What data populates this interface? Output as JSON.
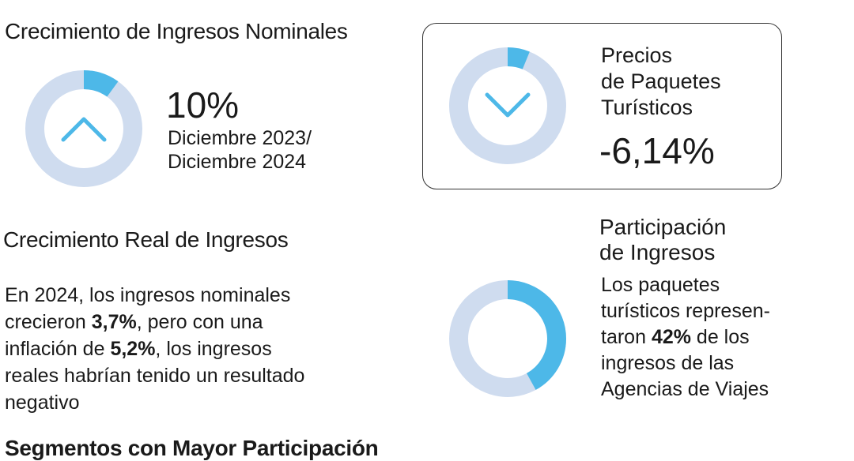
{
  "nominal": {
    "title": "Crecimiento de Ingresos Nominales",
    "value": "10%",
    "period_line1": "Diciembre 2023/",
    "period_line2": "Diciembre 2024",
    "ring_fraction": 0.1,
    "arrow_icon": "chevron-up-icon"
  },
  "packages": {
    "title_line1": "Precios",
    "title_line2": "de Paquetes",
    "title_line3": "Turísticos",
    "value": "-6,14%",
    "ring_fraction": 0.0614,
    "arrow_icon": "chevron-down-icon"
  },
  "real": {
    "title": "Crecimiento Real de Ingresos",
    "text_a": "En 2024, los ingresos nominales",
    "text_b": "crecieron ",
    "nominal_growth": "3,7%",
    "text_c": ", pero con una",
    "text_d": "inflación de ",
    "inflation": "5,2%",
    "text_e": ", los ingresos",
    "text_f": "reales habrían tenido un resultado",
    "text_g": "negativo"
  },
  "share": {
    "title_line1": "Participación",
    "title_line2": "de Ingresos",
    "text_a": "Los paquetes",
    "text_b": "turísticos represen-",
    "text_c": "taron ",
    "percent": "42%",
    "text_d": " de los",
    "text_e": "ingresos de las",
    "text_f": "Agencias de Viajes",
    "ring_fraction": 0.42
  },
  "footer": {
    "partial_title": "Segmentos con Mayor Participación"
  },
  "colors": {
    "ring_track": "#cfdcef",
    "ring_fill": "#4db8e8",
    "arrow": "#4db8e8",
    "text": "#1a1a1a"
  }
}
